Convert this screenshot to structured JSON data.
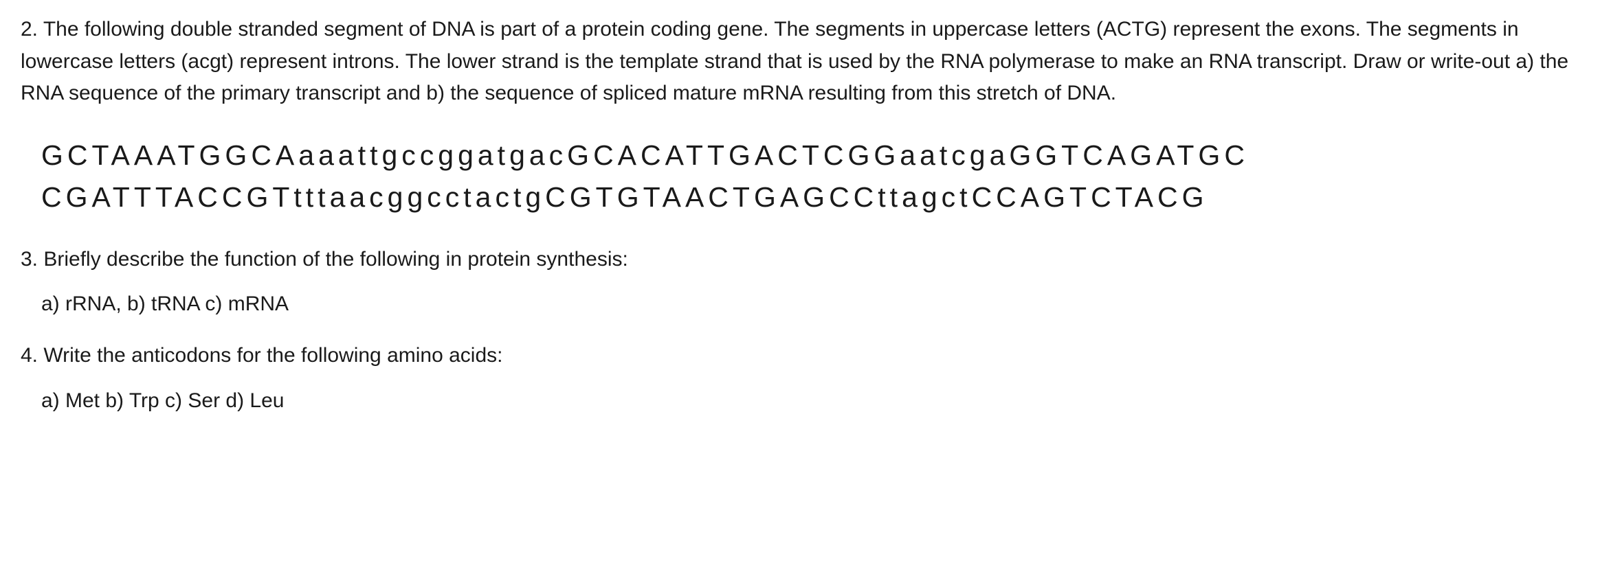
{
  "document": {
    "background_color": "#ffffff",
    "text_color": "#1a1a1a",
    "base_fontsize": 30,
    "sequence_fontsize": 41,
    "sequence_letter_spacing": 6,
    "line_height": 1.6
  },
  "question2": {
    "text": "2. The following double stranded segment of DNA is part of a protein coding gene. The segments in uppercase letters (ACTG) represent the exons. The segments in lowercase letters (acgt) represent introns. The lower strand is the template strand that is used by the RNA polymerase to make an RNA transcript. Draw or write-out a) the RNA sequence of the primary transcript and b) the sequence of spliced mature mRNA resulting from this stretch of DNA.",
    "dna_top_strand": "GCTAAATGGCAaaattgccggatgacGCACATTGACTCGGaatcgaGGTCAGATGC",
    "dna_bottom_strand": "CGATTTACCGTtttaacggcctactgCGTGTAACTGAGCCttagctCCAGTCTACG"
  },
  "question3": {
    "text": "3. Briefly describe the function of the following in protein synthesis:",
    "sub_items": "a) rRNA, b) tRNA c) mRNA"
  },
  "question4": {
    "text": "4. Write the anticodons for the following amino acids:",
    "sub_items": "a) Met   b) Trp   c)  Ser   d)   Leu"
  }
}
